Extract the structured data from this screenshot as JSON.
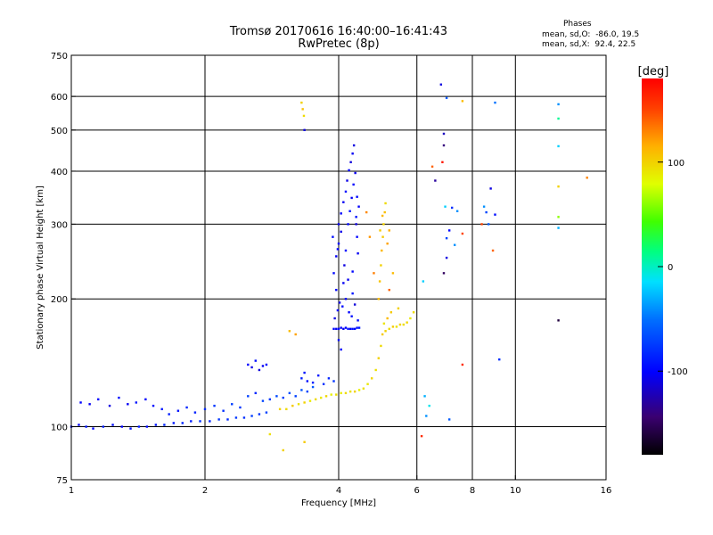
{
  "title_line1": "Tromsø 20170616 16:40:00–16:41:43",
  "title_line2": "RwPretec (8p)",
  "stats": {
    "header": "Phases",
    "line1": "mean, sd,O:  -86.0, 19.5",
    "line2": "mean, sd,X:  92.4, 22.5"
  },
  "colorbar": {
    "label": "[deg]",
    "ticks": [
      {
        "value": 100,
        "label": "100"
      },
      {
        "value": 0,
        "label": "0"
      },
      {
        "value": -100,
        "label": "-100"
      }
    ],
    "range": [
      -180,
      180
    ]
  },
  "chart_data": {
    "type": "scatter",
    "xlabel": "Frequency [MHz]",
    "ylabel": "Stationary phase Virtual Height [km]",
    "xscale": "log",
    "yscale": "log",
    "xlim": [
      1,
      16
    ],
    "ylim": [
      75,
      750
    ],
    "xticks": [
      {
        "value": 1,
        "label": "1"
      },
      {
        "value": 2,
        "label": "2"
      },
      {
        "value": 4,
        "label": "4"
      },
      {
        "value": 6,
        "label": "6"
      },
      {
        "value": 8,
        "label": "8"
      },
      {
        "value": 10,
        "label": "10"
      },
      {
        "value": 16,
        "label": "16"
      }
    ],
    "xgrid": [
      2,
      4,
      6,
      8,
      10
    ],
    "yticks": [
      {
        "value": 75,
        "label": "75"
      },
      {
        "value": 100,
        "label": "100"
      },
      {
        "value": 200,
        "label": "200"
      },
      {
        "value": 300,
        "label": "300"
      },
      {
        "value": 400,
        "label": "400"
      },
      {
        "value": 500,
        "label": "500"
      },
      {
        "value": 600,
        "label": "600"
      },
      {
        "value": 750,
        "label": "750"
      }
    ],
    "ygrid": [
      100,
      200,
      300,
      400,
      500,
      600
    ],
    "grid": true,
    "series": [
      {
        "mode": "O",
        "phase_mean": -86.0,
        "phase_sd": 19.5,
        "points": [
          [
            1.0,
            100,
            -95
          ],
          [
            1.04,
            101,
            -100
          ],
          [
            1.08,
            100,
            -92
          ],
          [
            1.12,
            99,
            -98
          ],
          [
            1.18,
            100,
            -90
          ],
          [
            1.24,
            101,
            -96
          ],
          [
            1.3,
            100,
            -102
          ],
          [
            1.36,
            99,
            -94
          ],
          [
            1.42,
            100,
            -88
          ],
          [
            1.48,
            100,
            -97
          ],
          [
            1.55,
            101,
            -92
          ],
          [
            1.62,
            101,
            -85
          ],
          [
            1.7,
            102,
            -90
          ],
          [
            1.78,
            102,
            -84
          ],
          [
            1.86,
            103,
            -88
          ],
          [
            1.95,
            103,
            -80
          ],
          [
            2.05,
            103,
            -85
          ],
          [
            2.15,
            104,
            -78
          ],
          [
            2.25,
            104,
            -82
          ],
          [
            2.35,
            105,
            -76
          ],
          [
            2.45,
            105,
            -80
          ],
          [
            2.55,
            106,
            -74
          ],
          [
            2.65,
            107,
            -78
          ],
          [
            2.75,
            108,
            -72
          ],
          [
            1.05,
            114,
            -100
          ],
          [
            1.1,
            113,
            -105
          ],
          [
            1.15,
            116,
            -98
          ],
          [
            1.22,
            112,
            -110
          ],
          [
            1.28,
            117,
            -96
          ],
          [
            1.34,
            113,
            -104
          ],
          [
            1.4,
            114,
            -92
          ],
          [
            1.47,
            116,
            -100
          ],
          [
            1.53,
            112,
            -95
          ],
          [
            1.6,
            110,
            -90
          ],
          [
            1.66,
            107,
            -88
          ],
          [
            1.74,
            109,
            -94
          ],
          [
            1.82,
            111,
            -84
          ],
          [
            1.9,
            108,
            -86
          ],
          [
            2.0,
            110,
            -82
          ],
          [
            2.1,
            112,
            -76
          ],
          [
            2.2,
            109,
            -80
          ],
          [
            2.3,
            113,
            -74
          ],
          [
            2.4,
            111,
            -78
          ],
          [
            2.5,
            118,
            -72
          ],
          [
            2.6,
            120,
            -84
          ],
          [
            2.7,
            115,
            -70
          ],
          [
            2.8,
            116,
            -76
          ],
          [
            2.9,
            118,
            -68
          ],
          [
            3.0,
            117,
            -74
          ],
          [
            3.1,
            120,
            -66
          ],
          [
            3.2,
            118,
            -72
          ],
          [
            3.3,
            122,
            -64
          ],
          [
            3.4,
            121,
            -70
          ],
          [
            3.5,
            124,
            -62
          ],
          [
            2.5,
            140,
            -100
          ],
          [
            2.55,
            138,
            -108
          ],
          [
            2.6,
            143,
            -95
          ],
          [
            2.65,
            136,
            -112
          ],
          [
            2.7,
            139,
            -104
          ],
          [
            2.75,
            140,
            -98
          ],
          [
            3.3,
            130,
            -88
          ],
          [
            3.35,
            134,
            -92
          ],
          [
            3.4,
            128,
            -94
          ],
          [
            3.5,
            127,
            -86
          ],
          [
            3.6,
            132,
            -90
          ],
          [
            3.7,
            126,
            -80
          ],
          [
            3.8,
            130,
            -84
          ],
          [
            3.9,
            128,
            -78
          ],
          [
            4.0,
            160,
            -96
          ],
          [
            4.05,
            152,
            -100
          ],
          [
            3.9,
            170,
            -100
          ],
          [
            3.95,
            170,
            -104
          ],
          [
            4.0,
            170,
            -98
          ],
          [
            4.05,
            171,
            -102
          ],
          [
            4.1,
            170,
            -106
          ],
          [
            4.15,
            171,
            -100
          ],
          [
            4.2,
            170,
            -95
          ],
          [
            4.25,
            170,
            -100
          ],
          [
            4.3,
            170,
            -92
          ],
          [
            4.35,
            170,
            -98
          ],
          [
            4.4,
            171,
            -94
          ],
          [
            4.45,
            171,
            -90
          ],
          [
            3.92,
            180,
            -110
          ],
          [
            3.98,
            188,
            -102
          ],
          [
            4.02,
            196,
            -108
          ],
          [
            4.08,
            192,
            -96
          ],
          [
            4.15,
            200,
            -104
          ],
          [
            4.22,
            186,
            -100
          ],
          [
            4.28,
            182,
            -94
          ],
          [
            4.35,
            194,
            -112
          ],
          [
            4.42,
            178,
            -96
          ],
          [
            3.95,
            210,
            -100
          ],
          [
            4.1,
            218,
            -104
          ],
          [
            4.3,
            206,
            -92
          ],
          [
            3.9,
            230,
            -98
          ],
          [
            3.95,
            252,
            -104
          ],
          [
            4.0,
            270,
            -100
          ],
          [
            4.05,
            288,
            -108
          ],
          [
            3.88,
            280,
            -96
          ],
          [
            3.98,
            262,
            -100
          ],
          [
            4.0,
            300,
            -106
          ],
          [
            4.05,
            318,
            -100
          ],
          [
            4.1,
            338,
            -104
          ],
          [
            4.15,
            358,
            -96
          ],
          [
            4.18,
            380,
            -108
          ],
          [
            4.22,
            402,
            -100
          ],
          [
            4.26,
            420,
            -112
          ],
          [
            4.3,
            440,
            -104
          ],
          [
            4.33,
            460,
            -110
          ],
          [
            4.2,
            300,
            -98
          ],
          [
            4.24,
            322,
            -92
          ],
          [
            4.28,
            346,
            -104
          ],
          [
            4.32,
            372,
            -100
          ],
          [
            4.36,
            396,
            -106
          ],
          [
            4.4,
            348,
            -98
          ],
          [
            4.44,
            330,
            -102
          ],
          [
            4.38,
            312,
            -94
          ],
          [
            4.4,
            280,
            -100
          ],
          [
            4.15,
            260,
            -96
          ],
          [
            4.12,
            240,
            -110
          ],
          [
            4.42,
            256,
            -104
          ],
          [
            4.3,
            232,
            -98
          ],
          [
            4.2,
            222,
            -106
          ],
          [
            4.38,
            300,
            -112
          ],
          [
            3.35,
            500,
            -110
          ]
        ]
      },
      {
        "mode": "X",
        "phase_mean": 92.4,
        "phase_sd": 22.5,
        "points": [
          [
            2.95,
            110,
            100
          ],
          [
            3.05,
            110,
            96
          ],
          [
            3.15,
            112,
            104
          ],
          [
            3.25,
            113,
            92
          ],
          [
            3.35,
            114,
            100
          ],
          [
            3.45,
            115,
            88
          ],
          [
            3.55,
            116,
            96
          ],
          [
            3.65,
            117,
            90
          ],
          [
            3.75,
            118,
            98
          ],
          [
            3.85,
            119,
            86
          ],
          [
            3.95,
            119,
            94
          ],
          [
            4.05,
            120,
            88
          ],
          [
            4.15,
            120,
            96
          ],
          [
            4.25,
            121,
            92
          ],
          [
            4.35,
            121,
            100
          ],
          [
            4.45,
            122,
            86
          ],
          [
            4.55,
            123,
            94
          ],
          [
            4.65,
            126,
            90
          ],
          [
            4.75,
            130,
            98
          ],
          [
            4.85,
            136,
            94
          ],
          [
            4.92,
            145,
            100
          ],
          [
            4.98,
            155,
            96
          ],
          [
            5.02,
            165,
            104
          ],
          [
            5.06,
            175,
            92
          ],
          [
            5.1,
            168,
            100
          ],
          [
            5.2,
            170,
            96
          ],
          [
            5.3,
            172,
            102
          ],
          [
            5.4,
            172,
            92
          ],
          [
            5.5,
            174,
            100
          ],
          [
            5.6,
            174,
            94
          ],
          [
            5.7,
            176,
            98
          ],
          [
            5.8,
            180,
            90
          ],
          [
            5.9,
            186,
            96
          ],
          [
            5.15,
            180,
            110
          ],
          [
            5.25,
            186,
            104
          ],
          [
            5.45,
            190,
            100
          ],
          [
            4.92,
            200,
            110
          ],
          [
            4.95,
            220,
            106
          ],
          [
            4.98,
            240,
            100
          ],
          [
            5.0,
            260,
            112
          ],
          [
            5.03,
            280,
            104
          ],
          [
            5.05,
            300,
            100
          ],
          [
            5.08,
            320,
            108
          ],
          [
            5.1,
            336,
            96
          ],
          [
            5.02,
            314,
            112
          ],
          [
            4.96,
            290,
            104
          ],
          [
            5.2,
            290,
            116
          ],
          [
            5.15,
            270,
            120
          ],
          [
            4.7,
            280,
            124
          ],
          [
            4.62,
            320,
            128
          ],
          [
            4.8,
            230,
            132
          ],
          [
            5.2,
            210,
            140
          ],
          [
            5.3,
            230,
            110
          ],
          [
            3.3,
            580,
            100
          ],
          [
            3.32,
            560,
            108
          ],
          [
            3.34,
            540,
            96
          ],
          [
            3.2,
            165,
            120
          ],
          [
            3.1,
            168,
            110
          ],
          [
            2.8,
            96,
            94
          ],
          [
            3.0,
            88,
            100
          ],
          [
            3.35,
            92,
            104
          ]
        ]
      },
      {
        "mode": "sparse",
        "points": [
          [
            6.8,
            640,
            -110
          ],
          [
            7.0,
            595,
            -60
          ],
          [
            7.6,
            585,
            110
          ],
          [
            9.0,
            580,
            -50
          ],
          [
            12.5,
            575,
            -40
          ],
          [
            12.5,
            532,
            10
          ],
          [
            12.5,
            458,
            -20
          ],
          [
            12.5,
            368,
            100
          ],
          [
            12.5,
            312,
            60
          ],
          [
            12.5,
            294,
            -30
          ],
          [
            12.5,
            178,
            -160
          ],
          [
            14.5,
            386,
            130
          ],
          [
            6.9,
            490,
            -120
          ],
          [
            6.9,
            460,
            -140
          ],
          [
            6.85,
            420,
            170
          ],
          [
            6.5,
            410,
            140
          ],
          [
            6.6,
            380,
            -130
          ],
          [
            7.2,
            328,
            -80
          ],
          [
            7.4,
            322,
            -40
          ],
          [
            6.95,
            330,
            -20
          ],
          [
            7.3,
            268,
            -40
          ],
          [
            7.1,
            290,
            -100
          ],
          [
            7.0,
            278,
            -70
          ],
          [
            6.9,
            230,
            -150
          ],
          [
            7.0,
            250,
            -110
          ],
          [
            7.6,
            285,
            150
          ],
          [
            8.4,
            300,
            150
          ],
          [
            8.6,
            320,
            -70
          ],
          [
            8.8,
            364,
            -110
          ],
          [
            9.0,
            316,
            -95
          ],
          [
            8.9,
            260,
            140
          ],
          [
            6.2,
            220,
            -20
          ],
          [
            9.2,
            144,
            -80
          ],
          [
            7.6,
            140,
            160
          ],
          [
            6.3,
            106,
            -40
          ],
          [
            7.1,
            104,
            -60
          ],
          [
            6.4,
            112,
            -10
          ],
          [
            6.25,
            118,
            -30
          ],
          [
            6.15,
            95,
            160
          ],
          [
            8.5,
            330,
            -40
          ],
          [
            8.7,
            300,
            -60
          ]
        ]
      }
    ]
  }
}
